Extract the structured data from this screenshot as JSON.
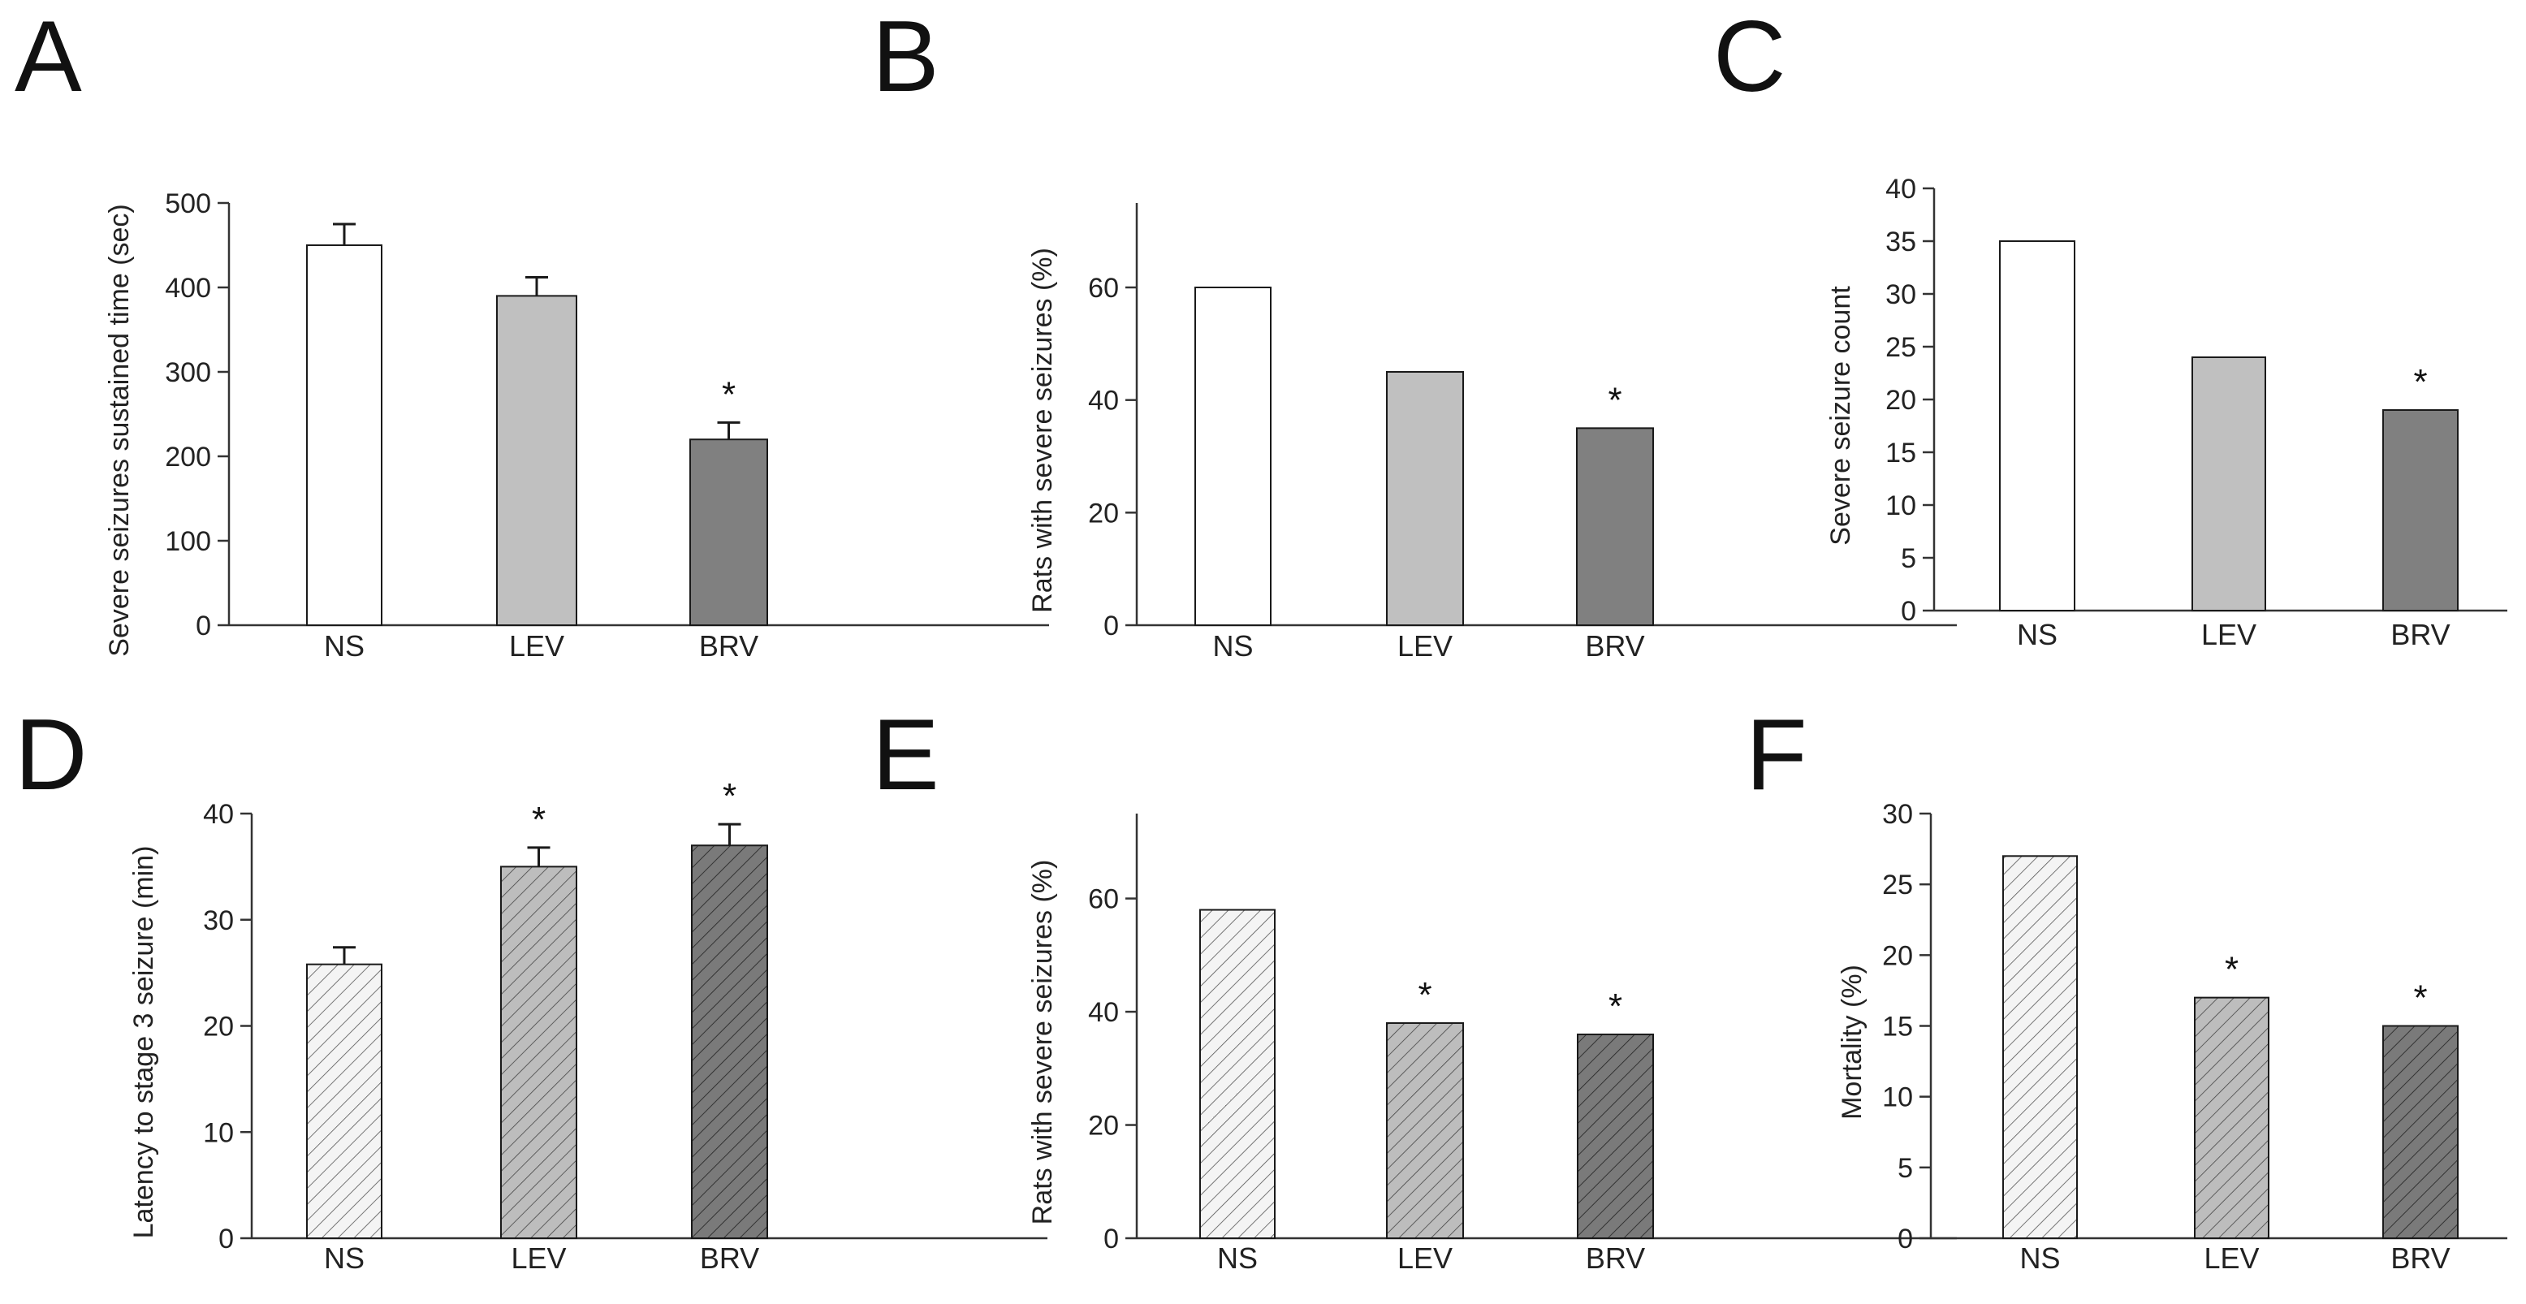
{
  "chart_data": [
    {
      "panel": "A",
      "type": "bar",
      "categories": [
        "NS",
        "LEV",
        "BRV"
      ],
      "values": [
        450,
        390,
        220
      ],
      "errors": [
        25,
        22,
        20
      ],
      "significant": [
        false,
        false,
        true
      ],
      "significance_mark": "*",
      "ylabel": "Severe seizures sustained time (sec)",
      "ylim": [
        0,
        500
      ],
      "yticks": [
        0,
        100,
        200,
        300,
        400,
        500
      ],
      "colors": [
        "#ffffff",
        "#c0c0c0",
        "#808080"
      ],
      "hatched": false
    },
    {
      "panel": "B",
      "type": "bar",
      "categories": [
        "NS",
        "LEV",
        "BRV"
      ],
      "values": [
        60,
        45,
        35
      ],
      "significant": [
        false,
        false,
        true
      ],
      "significance_mark": "*",
      "ylabel": "Rats with severe seizures (%)",
      "ylim": [
        0,
        75
      ],
      "yticks": [
        0,
        20,
        40,
        60
      ],
      "colors": [
        "#ffffff",
        "#c0c0c0",
        "#808080"
      ],
      "hatched": false
    },
    {
      "panel": "C",
      "type": "bar",
      "categories": [
        "NS",
        "LEV",
        "BRV"
      ],
      "values": [
        35,
        24,
        19
      ],
      "significant": [
        false,
        false,
        true
      ],
      "significance_mark": "*",
      "ylabel": "Severe seizure count",
      "ylim": [
        0,
        40
      ],
      "yticks": [
        0,
        5,
        10,
        15,
        20,
        25,
        30,
        35,
        40
      ],
      "colors": [
        "#ffffff",
        "#c0c0c0",
        "#808080"
      ],
      "hatched": false
    },
    {
      "panel": "D",
      "type": "bar",
      "categories": [
        "NS",
        "LEV",
        "BRV"
      ],
      "values": [
        25.8,
        35,
        37
      ],
      "errors": [
        1.6,
        1.8,
        2.0
      ],
      "significant": [
        false,
        true,
        true
      ],
      "significance_mark": "*",
      "ylabel": "Latency to stage 3 seizure (min)",
      "ylim": [
        0,
        40
      ],
      "yticks": [
        0,
        10,
        20,
        30,
        40
      ],
      "colors": [
        "#f4f4f4",
        "#bdbdbd",
        "#7a7a7a"
      ],
      "hatched": true
    },
    {
      "panel": "E",
      "type": "bar",
      "categories": [
        "NS",
        "LEV",
        "BRV"
      ],
      "values": [
        58,
        38,
        36
      ],
      "significant": [
        false,
        true,
        true
      ],
      "significance_mark": "*",
      "ylabel": "Rats with severe seizures (%)",
      "ylim": [
        0,
        75
      ],
      "yticks": [
        0,
        20,
        40,
        60
      ],
      "colors": [
        "#f4f4f4",
        "#bdbdbd",
        "#7a7a7a"
      ],
      "hatched": true
    },
    {
      "panel": "F",
      "type": "bar",
      "categories": [
        "NS",
        "LEV",
        "BRV"
      ],
      "values": [
        27,
        17,
        15
      ],
      "significant": [
        false,
        true,
        true
      ],
      "significance_mark": "*",
      "ylabel": "Mortality (%)",
      "ylim": [
        0,
        30
      ],
      "yticks": [
        0,
        5,
        10,
        15,
        20,
        25,
        30
      ],
      "colors": [
        "#f4f4f4",
        "#bdbdbd",
        "#7a7a7a"
      ],
      "hatched": true
    }
  ]
}
